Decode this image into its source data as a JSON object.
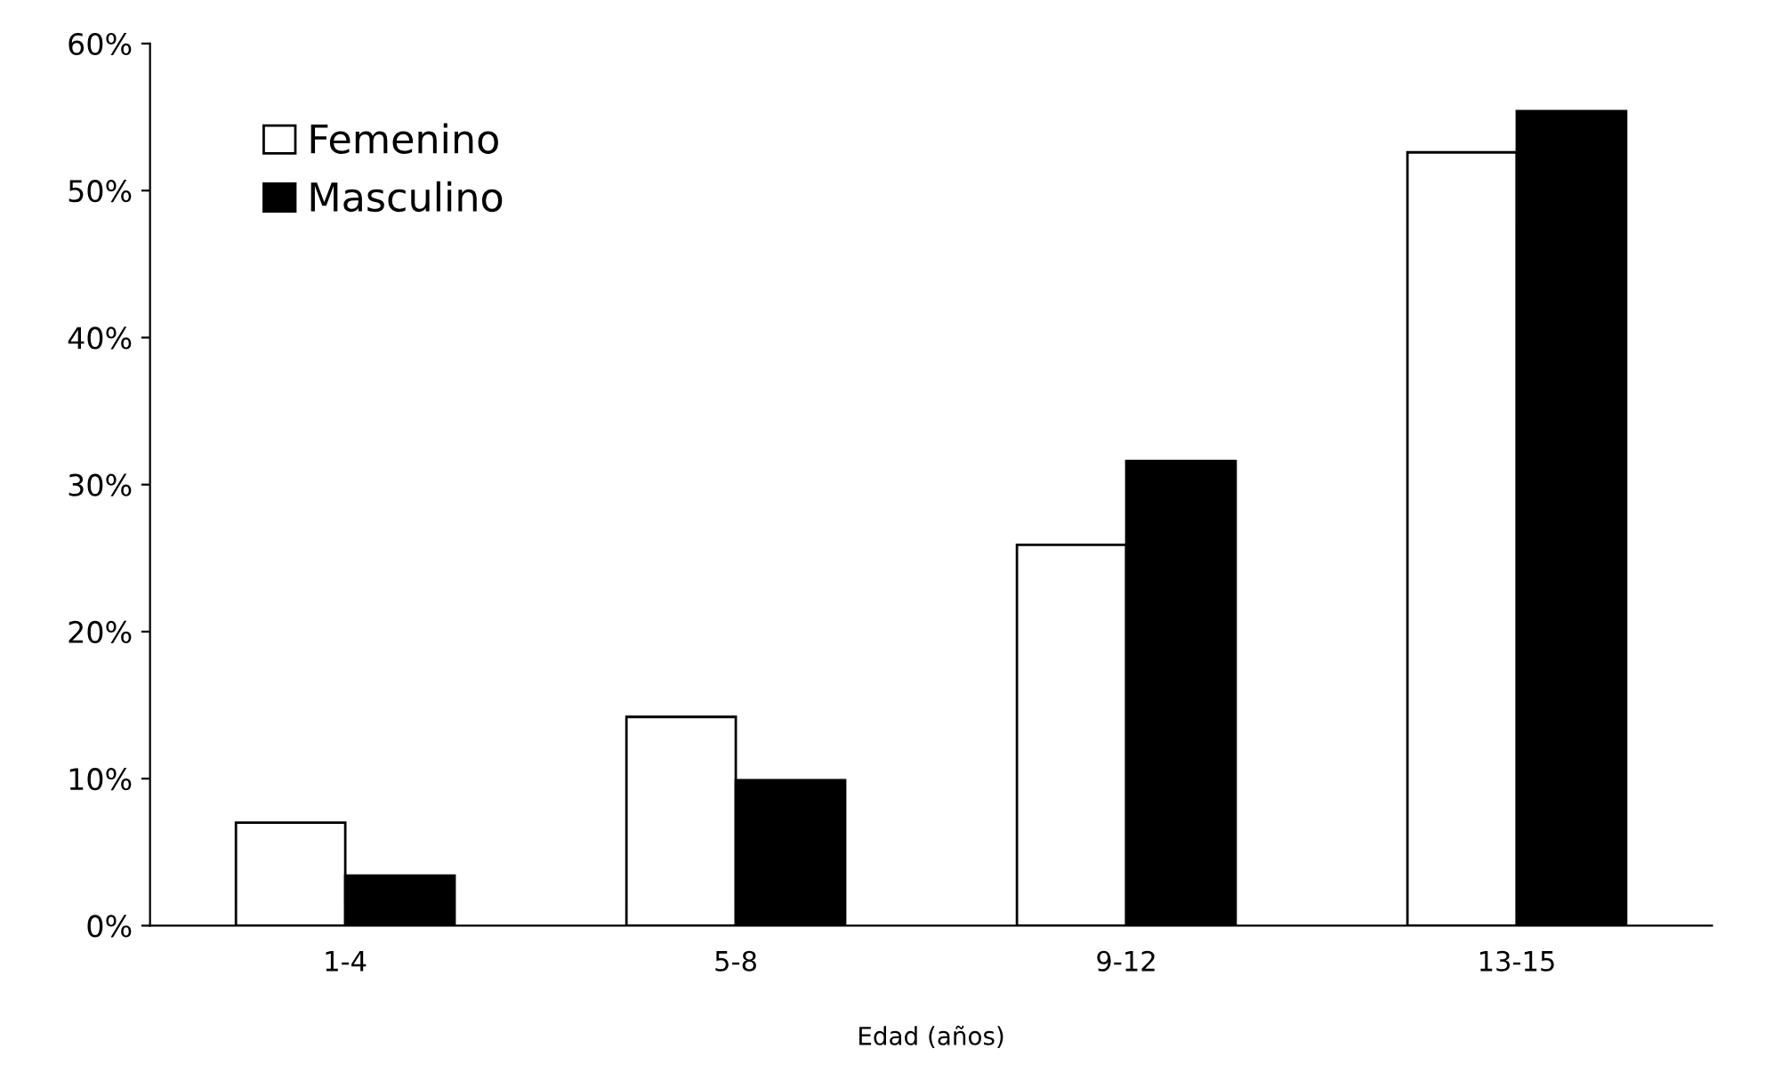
{
  "chart_data": {
    "type": "bar",
    "xlabel": "Edad (años)",
    "categories": [
      "1-4",
      "5-8",
      "9-12",
      "13-15"
    ],
    "series": [
      {
        "name": "Femenino",
        "color": "#ffffff",
        "values": [
          7.0,
          14.2,
          25.9,
          52.6
        ]
      },
      {
        "name": "Masculino",
        "color": "#000000",
        "values": [
          3.4,
          9.9,
          31.6,
          55.4
        ]
      }
    ],
    "ylim": [
      0,
      60
    ],
    "yticks": [
      {
        "value": 0,
        "label": "0%"
      },
      {
        "value": 10,
        "label": "10%"
      },
      {
        "value": 20,
        "label": "20%"
      },
      {
        "value": 30,
        "label": "30%"
      },
      {
        "value": 40,
        "label": "40%"
      },
      {
        "value": 50,
        "label": "50%"
      },
      {
        "value": 60,
        "label": "60%"
      }
    ],
    "grid": false,
    "legend": "top left"
  }
}
